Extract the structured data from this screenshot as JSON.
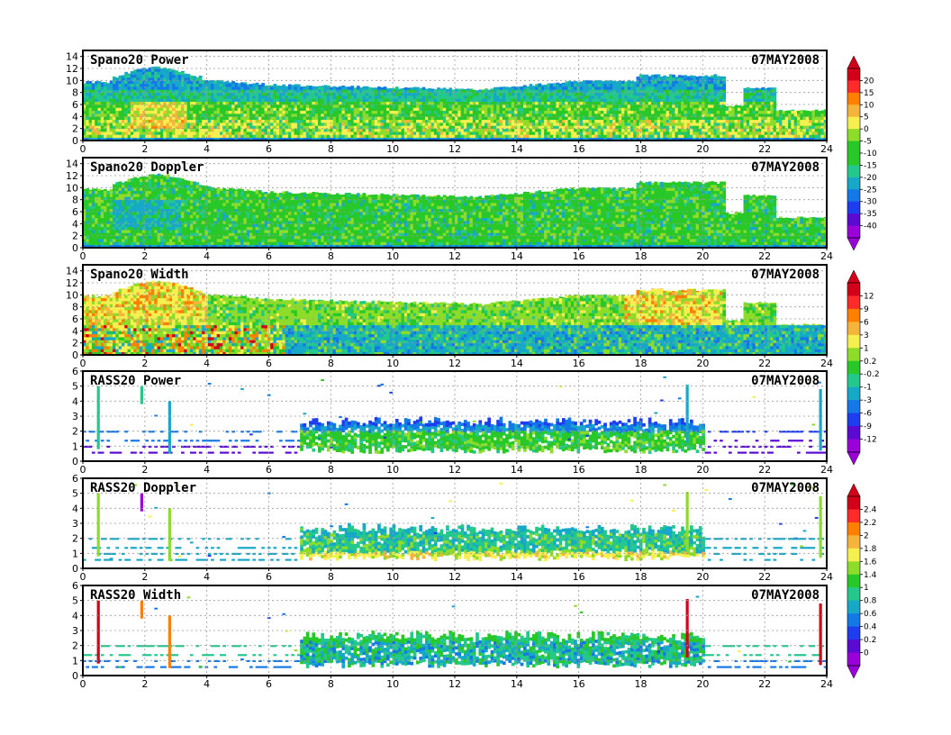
{
  "chart_data": [
    {
      "type": "heatmap",
      "title": "Spano20 Power",
      "date": "07MAY2008",
      "x_ticks": [
        "0",
        "2",
        "4",
        "6",
        "8",
        "10",
        "12",
        "14",
        "16",
        "18",
        "20",
        "22",
        "24"
      ],
      "y_ticks": [
        "0",
        "2",
        "4",
        "6",
        "8",
        "10",
        "12",
        "14"
      ],
      "xlim": [
        0,
        24
      ],
      "ylim": [
        0,
        15
      ],
      "grid": true,
      "colorbar": [
        "20",
        "15",
        "10",
        "5",
        "0",
        "-5",
        "-10",
        "-15",
        "-20",
        "-25",
        "-30",
        "-35",
        "-40"
      ],
      "colors": [
        "#d3001a",
        "#ff2a2a",
        "#ff7f00",
        "#f5b43c",
        "#f5f050",
        "#8edc2a",
        "#28c828",
        "#24c88c",
        "#17a8c8",
        "#1478e6",
        "#1e3cf0",
        "#5a0ad2",
        "#9a00d8"
      ]
    },
    {
      "type": "heatmap",
      "title": "Spano20 Doppler",
      "date": "07MAY2008",
      "x_ticks": [
        "0",
        "2",
        "4",
        "6",
        "8",
        "10",
        "12",
        "14",
        "16",
        "18",
        "20",
        "22",
        "24"
      ],
      "y_ticks": [
        "0",
        "2",
        "4",
        "6",
        "8",
        "10",
        "12",
        "14"
      ],
      "xlim": [
        0,
        24
      ],
      "ylim": [
        0,
        15
      ],
      "grid": true
    },
    {
      "type": "heatmap",
      "title": "Spano20 Width",
      "date": "07MAY2008",
      "x_ticks": [
        "0",
        "2",
        "4",
        "6",
        "8",
        "10",
        "12",
        "14",
        "16",
        "18",
        "20",
        "22",
        "24"
      ],
      "y_ticks": [
        "0",
        "2",
        "4",
        "6",
        "8",
        "10",
        "12",
        "14"
      ],
      "xlim": [
        0,
        24
      ],
      "ylim": [
        0,
        15
      ],
      "grid": true,
      "colorbar": [
        "12",
        "9",
        "6",
        "3",
        "1",
        "0.2",
        "-0.2",
        "-1",
        "-3",
        "-6",
        "-9",
        "-12"
      ],
      "colors": [
        "#d3001a",
        "#ff2a2a",
        "#ff7f00",
        "#f5b43c",
        "#f5f050",
        "#8edc2a",
        "#28c828",
        "#24c88c",
        "#17a8c8",
        "#1478e6",
        "#1e3cf0",
        "#5a0ad2",
        "#9a00d8"
      ]
    },
    {
      "type": "heatmap",
      "title": "RASS20 Power",
      "date": "07MAY2008",
      "x_ticks": [
        "0",
        "2",
        "4",
        "6",
        "8",
        "10",
        "12",
        "14",
        "16",
        "18",
        "20",
        "22",
        "24"
      ],
      "y_ticks": [
        "0",
        "1",
        "2",
        "3",
        "4",
        "5",
        "6"
      ],
      "xlim": [
        0,
        24
      ],
      "ylim": [
        0,
        6
      ],
      "grid": true
    },
    {
      "type": "heatmap",
      "title": "RASS20 Doppler",
      "date": "07MAY2008",
      "x_ticks": [
        "0",
        "2",
        "4",
        "6",
        "8",
        "10",
        "12",
        "14",
        "16",
        "18",
        "20",
        "22",
        "24"
      ],
      "y_ticks": [
        "0",
        "1",
        "2",
        "3",
        "4",
        "5",
        "6"
      ],
      "xlim": [
        0,
        24
      ],
      "ylim": [
        0,
        6
      ],
      "grid": true,
      "colorbar": [
        "2.4",
        "2.2",
        "2",
        "1.8",
        "1.6",
        "1.4",
        "1",
        "0.8",
        "0.6",
        "0.4",
        "0.2",
        "0"
      ],
      "colors": [
        "#d3001a",
        "#ff2a2a",
        "#ff7f00",
        "#f5b43c",
        "#f5f050",
        "#8edc2a",
        "#28c828",
        "#24c88c",
        "#17a8c8",
        "#1478e6",
        "#1e3cf0",
        "#5a0ad2",
        "#9a00d8"
      ]
    },
    {
      "type": "heatmap",
      "title": "RASS20 Width",
      "date": "07MAY2008",
      "x_ticks": [
        "0",
        "2",
        "4",
        "6",
        "8",
        "10",
        "12",
        "14",
        "16",
        "18",
        "20",
        "22",
        "24"
      ],
      "y_ticks": [
        "0",
        "1",
        "2",
        "3",
        "4",
        "5",
        "6"
      ],
      "xlim": [
        0,
        24
      ],
      "ylim": [
        0,
        6
      ],
      "grid": true
    }
  ]
}
